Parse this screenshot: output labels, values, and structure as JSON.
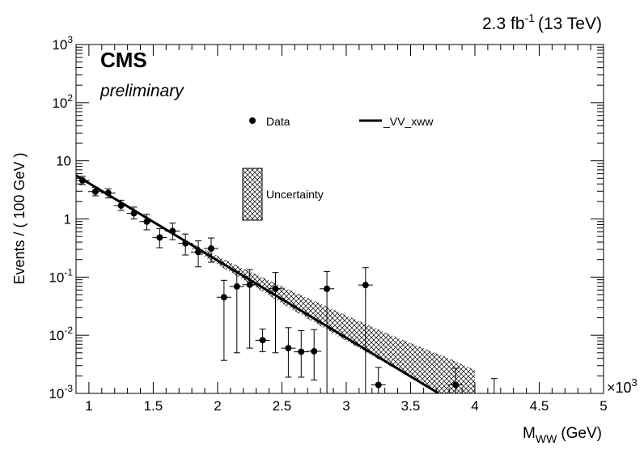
{
  "header": {
    "lumi_value": "2.3 fb",
    "lumi_exp": "-1",
    "energy": "(13 TeV)",
    "cms_label": "CMS",
    "preliminary_label": "preliminary"
  },
  "axes": {
    "xlabel_main": "M",
    "xlabel_sub": "WW",
    "xlabel_unit": "(GeV)",
    "ylabel": "Events / ( 100 GeV )",
    "x_multiplier_base": "×10",
    "x_multiplier_exp": "3"
  },
  "legend": {
    "data_label": "Data",
    "fit_label": "_VV_xww",
    "uncertainty_label": "Uncertainty"
  },
  "chart_data": {
    "type": "scatter",
    "title": "",
    "xlabel": "M_WW (GeV)",
    "ylabel": "Events / ( 100 GeV )",
    "x_unit_scale": 1000,
    "xlim": [
      0.9,
      5.0
    ],
    "ylim": [
      0.001,
      1000
    ],
    "y_scale": "log",
    "grid": false,
    "legend_placement": "top-center",
    "x_ticks": [
      {
        "v": 1,
        "label": "1"
      },
      {
        "v": 1.5,
        "label": "1.5"
      },
      {
        "v": 2,
        "label": "2"
      },
      {
        "v": 2.5,
        "label": "2.5"
      },
      {
        "v": 3,
        "label": "3"
      },
      {
        "v": 3.5,
        "label": "3.5"
      },
      {
        "v": 4,
        "label": "4"
      },
      {
        "v": 4.5,
        "label": "4.5"
      },
      {
        "v": 5,
        "label": "5"
      }
    ],
    "y_ticks": [
      {
        "v": 0.001,
        "base": "10",
        "exp": "-3"
      },
      {
        "v": 0.01,
        "base": "10",
        "exp": "-2"
      },
      {
        "v": 0.1,
        "base": "10",
        "exp": "-1"
      },
      {
        "v": 1,
        "base": "1",
        "exp": ""
      },
      {
        "v": 10,
        "base": "10",
        "exp": ""
      },
      {
        "v": 100,
        "base": "10",
        "exp": "2"
      },
      {
        "v": 1000,
        "base": "10",
        "exp": "3"
      }
    ],
    "series": [
      {
        "name": "Data",
        "kind": "points_with_errors",
        "points": [
          {
            "x": 0.95,
            "y": 4.6,
            "lo": 3.9,
            "hi": 5.4
          },
          {
            "x": 1.05,
            "y": 2.95,
            "lo": 2.5,
            "hi": 3.5
          },
          {
            "x": 1.15,
            "y": 2.8,
            "lo": 2.3,
            "hi": 3.3
          },
          {
            "x": 1.25,
            "y": 1.7,
            "lo": 1.4,
            "hi": 2.1
          },
          {
            "x": 1.35,
            "y": 1.25,
            "lo": 1.0,
            "hi": 1.6
          },
          {
            "x": 1.45,
            "y": 0.9,
            "lo": 0.65,
            "hi": 1.2
          },
          {
            "x": 1.55,
            "y": 0.48,
            "lo": 0.32,
            "hi": 0.68
          },
          {
            "x": 1.65,
            "y": 0.62,
            "lo": 0.44,
            "hi": 0.85
          },
          {
            "x": 1.75,
            "y": 0.38,
            "lo": 0.24,
            "hi": 0.55
          },
          {
            "x": 1.85,
            "y": 0.27,
            "lo": 0.15,
            "hi": 0.42
          },
          {
            "x": 1.95,
            "y": 0.31,
            "lo": 0.18,
            "hi": 0.47
          },
          {
            "x": 2.05,
            "y": 0.045,
            "lo": 0.0037,
            "hi": 0.088
          },
          {
            "x": 2.15,
            "y": 0.069,
            "lo": 0.005,
            "hi": 0.125
          },
          {
            "x": 2.25,
            "y": 0.074,
            "lo": 0.006,
            "hi": 0.135
          },
          {
            "x": 2.35,
            "y": 0.0082,
            "lo": 0.0052,
            "hi": 0.0128
          },
          {
            "x": 2.45,
            "y": 0.063,
            "lo": 0.005,
            "hi": 0.12
          },
          {
            "x": 2.55,
            "y": 0.006,
            "lo": 0.0019,
            "hi": 0.0135
          },
          {
            "x": 2.65,
            "y": 0.0052,
            "lo": 0.0019,
            "hi": 0.012
          },
          {
            "x": 2.75,
            "y": 0.0053,
            "lo": 0.0017,
            "hi": 0.0125
          },
          {
            "x": 2.85,
            "y": 0.063,
            "lo": 0.001,
            "hi": 0.125
          },
          {
            "x": 3.15,
            "y": 0.073,
            "lo": 0.001,
            "hi": 0.145
          },
          {
            "x": 3.25,
            "y": 0.0014,
            "lo": 0.001,
            "hi": 0.0028
          },
          {
            "x": 3.85,
            "y": 0.0014,
            "lo": 0.001,
            "hi": 0.0027
          },
          {
            "x": 4.15,
            "y": null,
            "lo": 0.001,
            "hi": 0.0018
          }
        ]
      },
      {
        "name": "_VV_xww",
        "kind": "line",
        "x": [
          0.9,
          3.72
        ],
        "y": [
          5.6,
          0.001
        ]
      },
      {
        "name": "Uncertainty",
        "kind": "band",
        "x": [
          1.8,
          2.2,
          2.6,
          3.0,
          3.4,
          3.8,
          4.0
        ],
        "lo": [
          0.3,
          0.09,
          0.026,
          0.008,
          0.0025,
          0.0008,
          0.0006
        ],
        "hi": [
          0.38,
          0.14,
          0.055,
          0.022,
          0.009,
          0.004,
          0.0025
        ]
      }
    ]
  }
}
